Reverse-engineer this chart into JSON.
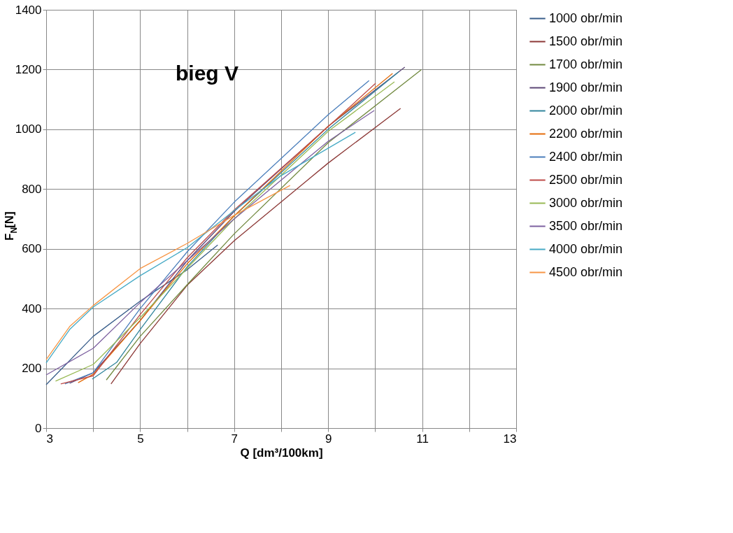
{
  "chart_data": {
    "type": "line",
    "title": "bieg V",
    "xlabel": "Q [dm³/100km]",
    "ylabel": "F$_{N}$[N]",
    "xlim": [
      3,
      13
    ],
    "xticks": [
      3,
      {
        "value": 4,
        "label": null
      },
      5,
      {
        "value": 6,
        "label": null
      },
      7,
      {
        "value": 8,
        "label": null
      },
      9,
      {
        "value": 10,
        "label": null
      },
      11,
      {
        "value": 12,
        "label": null
      },
      13
    ],
    "ylim": [
      0,
      1400
    ],
    "yticks": [
      0,
      200,
      400,
      600,
      800,
      1000,
      1200,
      1400
    ],
    "grid": true,
    "legend": "right",
    "marker": "none",
    "line_style": "solid",
    "series": [
      {
        "name": "1000 obr/min",
        "color": "#385d8a",
        "x": [
          3,
          4,
          5,
          6,
          6.65
        ],
        "values": [
          145,
          307,
          425,
          530,
          613
        ]
      },
      {
        "name": "1500 obr/min",
        "color": "#8c3836",
        "x": [
          4.38,
          5,
          6,
          7,
          9,
          10.54
        ],
        "values": [
          148,
          283,
          478,
          627,
          887,
          1070
        ]
      },
      {
        "name": "1700 obr/min",
        "color": "#71893f",
        "x": [
          4.28,
          5,
          6,
          7,
          9,
          10.98
        ],
        "values": [
          161,
          307,
          480,
          650,
          955,
          1199
        ]
      },
      {
        "name": "1900 obr/min",
        "color": "#5c4776",
        "x": [
          3.5,
          4,
          5,
          6,
          7,
          9,
          10.63
        ],
        "values": [
          150,
          185,
          360,
          560,
          725,
          1010,
          1208
        ]
      },
      {
        "name": "2000 obr/min",
        "color": "#31859c",
        "x": [
          3.98,
          4.5,
          5,
          6,
          7,
          9,
          10.5
        ],
        "values": [
          164,
          220,
          330,
          540,
          710,
          1000,
          1192
        ]
      },
      {
        "name": "2200 obr/min",
        "color": "#e46c0a",
        "x": [
          3.68,
          4,
          5,
          6,
          7,
          9,
          10.37
        ],
        "values": [
          152,
          180,
          360,
          550,
          710,
          1010,
          1187
        ]
      },
      {
        "name": "2400 obr/min",
        "color": "#4a7ebb",
        "x": [
          3.4,
          4,
          5,
          6,
          7,
          9,
          9.87
        ],
        "values": [
          148,
          185,
          400,
          590,
          756,
          1049,
          1163
        ]
      },
      {
        "name": "2500 obr/min",
        "color": "#be4b48",
        "x": [
          3.31,
          4,
          5,
          6,
          7,
          9,
          10.01
        ],
        "values": [
          148,
          175,
          380,
          570,
          730,
          1009,
          1154
        ]
      },
      {
        "name": "3000 obr/min",
        "color": "#98b954",
        "x": [
          3.2,
          4,
          5,
          7,
          9,
          10.41
        ],
        "values": [
          157,
          213,
          370,
          700,
          993,
          1159
        ]
      },
      {
        "name": "3500 obr/min",
        "color": "#7d60a0",
        "x": [
          3,
          4,
          5,
          6,
          7,
          9,
          9.98
        ],
        "values": [
          178,
          267,
          420,
          560,
          700,
          960,
          1063
        ]
      },
      {
        "name": "4000 obr/min",
        "color": "#46aac5",
        "x": [
          3,
          3.5,
          4,
          5,
          6,
          7,
          8,
          9.58
        ],
        "values": [
          218,
          330,
          405,
          510,
          604,
          728,
          845,
          990
        ]
      },
      {
        "name": "4500 obr/min",
        "color": "#f79646",
        "x": [
          3,
          3.5,
          4,
          5,
          6,
          7,
          8.19
        ],
        "values": [
          229,
          340,
          410,
          534,
          618,
          712,
          812
        ]
      }
    ]
  }
}
